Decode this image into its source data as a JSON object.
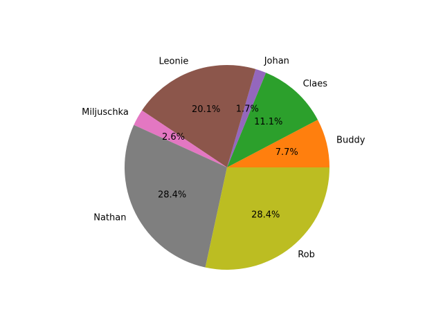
{
  "chart_data": {
    "type": "pie",
    "start_angle_deg": 0,
    "direction": "counterclockwise",
    "slices": [
      {
        "label": "Buddy",
        "pct_label": "7.7%",
        "value": 7.7,
        "color": "#ff7f0e"
      },
      {
        "label": "Claes",
        "pct_label": "11.1%",
        "value": 11.1,
        "color": "#2ca02c"
      },
      {
        "label": "Johan",
        "pct_label": "1.7%",
        "value": 1.7,
        "color": "#9467bd"
      },
      {
        "label": "Leonie",
        "pct_label": "20.1%",
        "value": 20.1,
        "color": "#8c564b"
      },
      {
        "label": "Miljuschka",
        "pct_label": "2.6%",
        "value": 2.6,
        "color": "#e377c2"
      },
      {
        "label": "Nathan",
        "pct_label": "28.4%",
        "value": 28.4,
        "color": "#7f7f7f"
      },
      {
        "label": "Rob",
        "pct_label": "28.4%",
        "value": 28.4,
        "color": "#bcbd22"
      }
    ]
  }
}
